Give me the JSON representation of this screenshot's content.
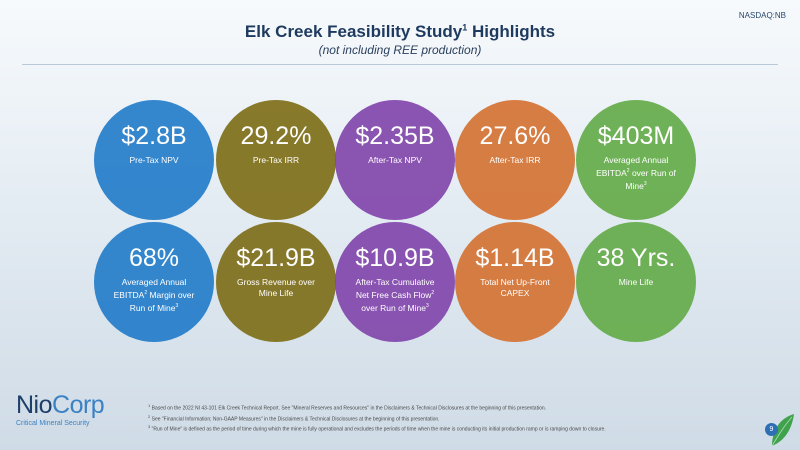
{
  "header": {
    "ticker": "NASDAQ:NB",
    "title": "Elk Creek Feasibility Study",
    "title_sup": "1",
    "title_suffix": " Highlights",
    "subtitle": "(not including REE production)"
  },
  "colors": {
    "blue": "#247dc9",
    "olive": "#7c6b14",
    "purple": "#7f42aa",
    "orange": "#d47030",
    "green": "#62aa46"
  },
  "metrics": [
    {
      "value": "$2.8B",
      "label": "Pre-Tax NPV"
    },
    {
      "value": "29.2%",
      "label": "Pre-Tax IRR"
    },
    {
      "value": "$2.35B",
      "label": "After-Tax NPV"
    },
    {
      "value": "27.6%",
      "label": "After-Tax IRR"
    },
    {
      "value": "$403M",
      "label_a": "Averaged Annual EBITDA",
      "sup_a": "2",
      "label_b": " over Run of Mine",
      "sup_b": "3"
    },
    {
      "value": "68%",
      "label_a": "Averaged Annual EBITDA",
      "sup_a": "2",
      "label_b": " Margin over Run of Mine",
      "sup_b": "3"
    },
    {
      "value": "$21.9B",
      "label": "Gross Revenue over Mine Life"
    },
    {
      "value": "$10.9B",
      "label_a": "After-Tax Cumulative Net Free Cash Flow",
      "sup_a": "2",
      "label_b": " over Run of Mine",
      "sup_b": "3"
    },
    {
      "value": "$1.14B",
      "label": "Total Net Up-Front CAPEX"
    },
    {
      "value": "38 Yrs.",
      "label": "Mine Life"
    }
  ],
  "footnotes": [
    {
      "num": "1",
      "text": " Based on the 2022 NI 43-101 Elk Creek Technical Report. See \"Mineral Reserves and Resources\" in the Disclaimers & Technical Disclosures at the beginning of this presentation."
    },
    {
      "num": "2",
      "text": " See \"Financial Information; Non-GAAP Measures\" in the Disclaimers & Technical Disclosures at the beginning of this presentation."
    },
    {
      "num": "3",
      "text": " \"Run of Mine\" is defined as the period of time during which the mine is fully operational and excludes the periods of time when the mine is conducting its initial production ramp or is ramping down to closure."
    }
  ],
  "logo": {
    "name_a": "Nio",
    "name_b": "Corp",
    "tagline": "Critical Mineral Security"
  },
  "page": {
    "number": "9"
  }
}
